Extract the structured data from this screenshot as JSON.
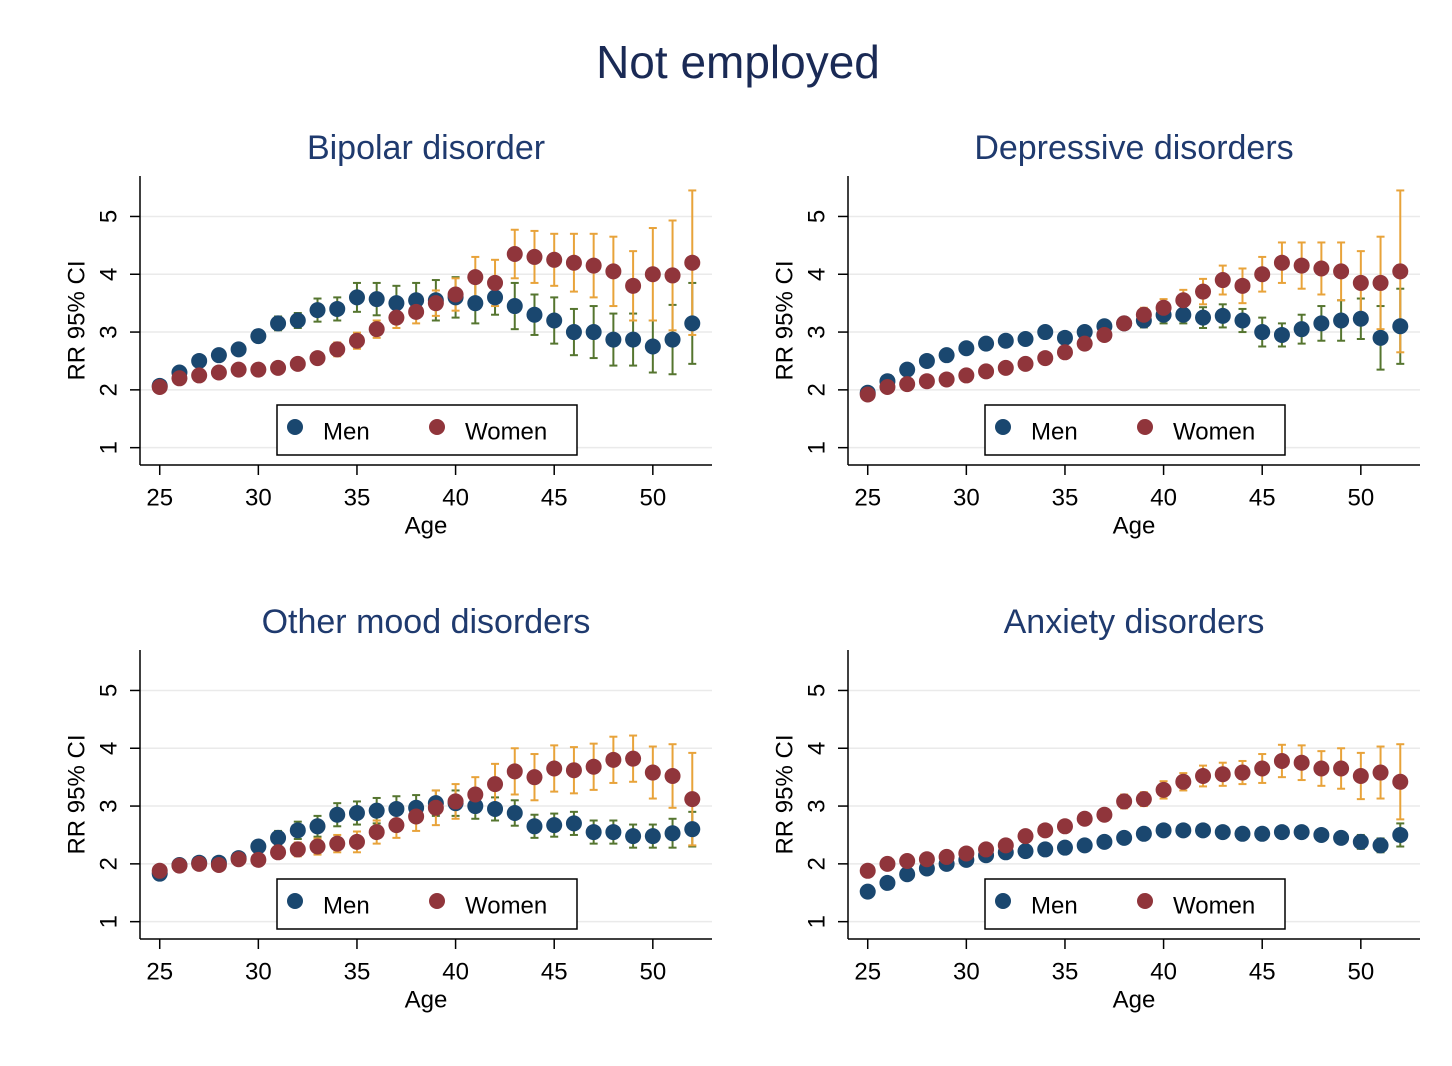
{
  "title": "Not employed",
  "chart_data": [
    {
      "type": "scatter",
      "title": "Bipolar disorder",
      "x_label": "Age",
      "y_label": "RR 95% CI",
      "x": [
        25,
        26,
        27,
        28,
        29,
        30,
        31,
        32,
        33,
        34,
        35,
        36,
        37,
        38,
        39,
        40,
        41,
        42,
        43,
        44,
        45,
        46,
        47,
        48,
        49,
        50,
        51,
        52
      ],
      "xlim": [
        24,
        53
      ],
      "xticks": [
        25,
        30,
        35,
        40,
        45,
        50
      ],
      "ylim": [
        0.7,
        5.7
      ],
      "yticks": [
        1,
        2,
        3,
        4,
        5
      ],
      "grid": true,
      "legend": "bottom",
      "series": [
        {
          "name": "Men",
          "color": "#1a476f",
          "error_color": "#55752f",
          "values": [
            2.07,
            2.3,
            2.5,
            2.6,
            2.7,
            2.93,
            3.15,
            3.2,
            3.38,
            3.4,
            3.6,
            3.57,
            3.5,
            3.55,
            3.55,
            3.6,
            3.5,
            3.6,
            3.45,
            3.3,
            3.2,
            3.0,
            3.0,
            2.87,
            2.87,
            2.75,
            2.87,
            3.15
          ],
          "errors": [
            0.05,
            0.06,
            0.07,
            0.08,
            0.1,
            0.1,
            0.12,
            0.13,
            0.2,
            0.2,
            0.25,
            0.28,
            0.3,
            0.3,
            0.35,
            0.35,
            0.35,
            0.3,
            0.4,
            0.35,
            0.4,
            0.4,
            0.45,
            0.45,
            0.45,
            0.45,
            0.6,
            0.7
          ]
        },
        {
          "name": "Women",
          "color": "#90353b",
          "error_color": "#e8a33a",
          "values": [
            2.05,
            2.2,
            2.25,
            2.3,
            2.35,
            2.35,
            2.38,
            2.45,
            2.55,
            2.7,
            2.85,
            3.05,
            3.25,
            3.35,
            3.5,
            3.65,
            3.95,
            3.85,
            4.35,
            4.3,
            4.25,
            4.2,
            4.15,
            4.05,
            3.8,
            4.0,
            3.98,
            4.2
          ],
          "errors": [
            0.05,
            0.05,
            0.05,
            0.05,
            0.05,
            0.06,
            0.07,
            0.08,
            0.1,
            0.12,
            0.14,
            0.15,
            0.18,
            0.2,
            0.22,
            0.28,
            0.35,
            0.4,
            0.42,
            0.45,
            0.45,
            0.5,
            0.55,
            0.6,
            0.6,
            0.8,
            0.95,
            1.25
          ]
        }
      ]
    },
    {
      "type": "scatter",
      "title": "Depressive disorders",
      "x_label": "Age",
      "y_label": "RR 95% CI",
      "x": [
        25,
        26,
        27,
        28,
        29,
        30,
        31,
        32,
        33,
        34,
        35,
        36,
        37,
        38,
        39,
        40,
        41,
        42,
        43,
        44,
        45,
        46,
        47,
        48,
        49,
        50,
        51,
        52
      ],
      "xlim": [
        24,
        53
      ],
      "xticks": [
        25,
        30,
        35,
        40,
        45,
        50
      ],
      "ylim": [
        0.7,
        5.7
      ],
      "yticks": [
        1,
        2,
        3,
        4,
        5
      ],
      "grid": true,
      "legend": "bottom",
      "series": [
        {
          "name": "Men",
          "color": "#1a476f",
          "error_color": "#55752f",
          "values": [
            1.95,
            2.15,
            2.35,
            2.5,
            2.6,
            2.72,
            2.8,
            2.85,
            2.88,
            3.0,
            2.9,
            3.0,
            3.1,
            3.15,
            3.2,
            3.3,
            3.3,
            3.25,
            3.28,
            3.2,
            3.0,
            2.95,
            3.05,
            3.15,
            3.2,
            3.23,
            2.9,
            3.1
          ],
          "errors": [
            0.04,
            0.05,
            0.05,
            0.05,
            0.05,
            0.05,
            0.05,
            0.05,
            0.06,
            0.07,
            0.08,
            0.1,
            0.1,
            0.1,
            0.12,
            0.15,
            0.15,
            0.18,
            0.2,
            0.2,
            0.25,
            0.2,
            0.25,
            0.3,
            0.35,
            0.35,
            0.55,
            0.65
          ]
        },
        {
          "name": "Women",
          "color": "#90353b",
          "error_color": "#e8a33a",
          "values": [
            1.92,
            2.05,
            2.1,
            2.15,
            2.18,
            2.25,
            2.32,
            2.38,
            2.45,
            2.55,
            2.65,
            2.8,
            2.95,
            3.15,
            3.3,
            3.42,
            3.55,
            3.7,
            3.9,
            3.8,
            4.0,
            4.2,
            4.15,
            4.1,
            4.05,
            3.85,
            3.85,
            4.05
          ],
          "errors": [
            0.04,
            0.04,
            0.04,
            0.04,
            0.04,
            0.05,
            0.05,
            0.05,
            0.06,
            0.06,
            0.07,
            0.08,
            0.1,
            0.1,
            0.12,
            0.15,
            0.18,
            0.22,
            0.25,
            0.3,
            0.3,
            0.35,
            0.4,
            0.45,
            0.5,
            0.55,
            0.8,
            1.4
          ]
        }
      ]
    },
    {
      "type": "scatter",
      "title": "Other mood disorders",
      "x_label": "Age",
      "y_label": "RR 95% CI",
      "x": [
        25,
        26,
        27,
        28,
        29,
        30,
        31,
        32,
        33,
        34,
        35,
        36,
        37,
        38,
        39,
        40,
        41,
        42,
        43,
        44,
        45,
        46,
        47,
        48,
        49,
        50,
        51,
        52
      ],
      "xlim": [
        24,
        53
      ],
      "xticks": [
        25,
        30,
        35,
        40,
        45,
        50
      ],
      "ylim": [
        0.7,
        5.7
      ],
      "yticks": [
        1,
        2,
        3,
        4,
        5
      ],
      "grid": true,
      "legend": "bottom",
      "series": [
        {
          "name": "Men",
          "color": "#1a476f",
          "error_color": "#55752f",
          "values": [
            1.83,
            1.98,
            2.02,
            2.02,
            2.1,
            2.3,
            2.45,
            2.58,
            2.65,
            2.85,
            2.88,
            2.92,
            2.95,
            2.97,
            3.05,
            3.05,
            3.0,
            2.95,
            2.88,
            2.65,
            2.67,
            2.7,
            2.55,
            2.55,
            2.48,
            2.48,
            2.53,
            2.6
          ],
          "errors": [
            0.06,
            0.06,
            0.07,
            0.07,
            0.08,
            0.1,
            0.12,
            0.15,
            0.18,
            0.2,
            0.2,
            0.22,
            0.22,
            0.22,
            0.22,
            0.22,
            0.22,
            0.2,
            0.22,
            0.2,
            0.2,
            0.2,
            0.2,
            0.2,
            0.2,
            0.2,
            0.25,
            0.3
          ]
        },
        {
          "name": "Women",
          "color": "#90353b",
          "error_color": "#e8a33a",
          "values": [
            1.88,
            1.97,
            2.0,
            1.98,
            2.08,
            2.07,
            2.2,
            2.25,
            2.3,
            2.35,
            2.38,
            2.55,
            2.67,
            2.82,
            2.97,
            3.08,
            3.2,
            3.38,
            3.6,
            3.5,
            3.65,
            3.62,
            3.68,
            3.8,
            3.82,
            3.58,
            3.52,
            3.12
          ],
          "errors": [
            0.05,
            0.05,
            0.06,
            0.06,
            0.08,
            0.08,
            0.1,
            0.12,
            0.14,
            0.15,
            0.18,
            0.2,
            0.22,
            0.25,
            0.3,
            0.3,
            0.3,
            0.35,
            0.4,
            0.4,
            0.4,
            0.4,
            0.4,
            0.4,
            0.4,
            0.45,
            0.55,
            0.8
          ]
        }
      ]
    },
    {
      "type": "scatter",
      "title": "Anxiety disorders",
      "x_label": "Age",
      "y_label": "RR 95% CI",
      "x": [
        25,
        26,
        27,
        28,
        29,
        30,
        31,
        32,
        33,
        34,
        35,
        36,
        37,
        38,
        39,
        40,
        41,
        42,
        43,
        44,
        45,
        46,
        47,
        48,
        49,
        50,
        51,
        52
      ],
      "xlim": [
        24,
        53
      ],
      "xticks": [
        25,
        30,
        35,
        40,
        45,
        50
      ],
      "ylim": [
        0.7,
        5.7
      ],
      "yticks": [
        1,
        2,
        3,
        4,
        5
      ],
      "grid": true,
      "legend": "bottom",
      "series": [
        {
          "name": "Men",
          "color": "#1a476f",
          "error_color": "#55752f",
          "values": [
            1.52,
            1.67,
            1.82,
            1.92,
            2.0,
            2.07,
            2.15,
            2.2,
            2.22,
            2.25,
            2.28,
            2.32,
            2.38,
            2.45,
            2.52,
            2.58,
            2.58,
            2.58,
            2.55,
            2.52,
            2.52,
            2.55,
            2.55,
            2.5,
            2.45,
            2.38,
            2.32,
            2.5
          ],
          "errors": [
            0.04,
            0.04,
            0.04,
            0.04,
            0.04,
            0.04,
            0.04,
            0.04,
            0.04,
            0.05,
            0.05,
            0.05,
            0.05,
            0.06,
            0.06,
            0.06,
            0.07,
            0.07,
            0.07,
            0.07,
            0.08,
            0.08,
            0.08,
            0.1,
            0.1,
            0.12,
            0.12,
            0.2
          ]
        },
        {
          "name": "Women",
          "color": "#90353b",
          "error_color": "#e8a33a",
          "values": [
            1.88,
            2.0,
            2.05,
            2.08,
            2.12,
            2.18,
            2.25,
            2.32,
            2.48,
            2.58,
            2.65,
            2.78,
            2.85,
            3.08,
            3.12,
            3.28,
            3.42,
            3.52,
            3.55,
            3.58,
            3.65,
            3.78,
            3.75,
            3.65,
            3.65,
            3.52,
            3.58,
            3.42
          ],
          "errors": [
            0.04,
            0.04,
            0.04,
            0.04,
            0.05,
            0.05,
            0.06,
            0.06,
            0.07,
            0.07,
            0.08,
            0.1,
            0.1,
            0.12,
            0.12,
            0.15,
            0.15,
            0.18,
            0.2,
            0.2,
            0.25,
            0.28,
            0.3,
            0.3,
            0.35,
            0.4,
            0.45,
            0.65
          ]
        }
      ]
    }
  ]
}
